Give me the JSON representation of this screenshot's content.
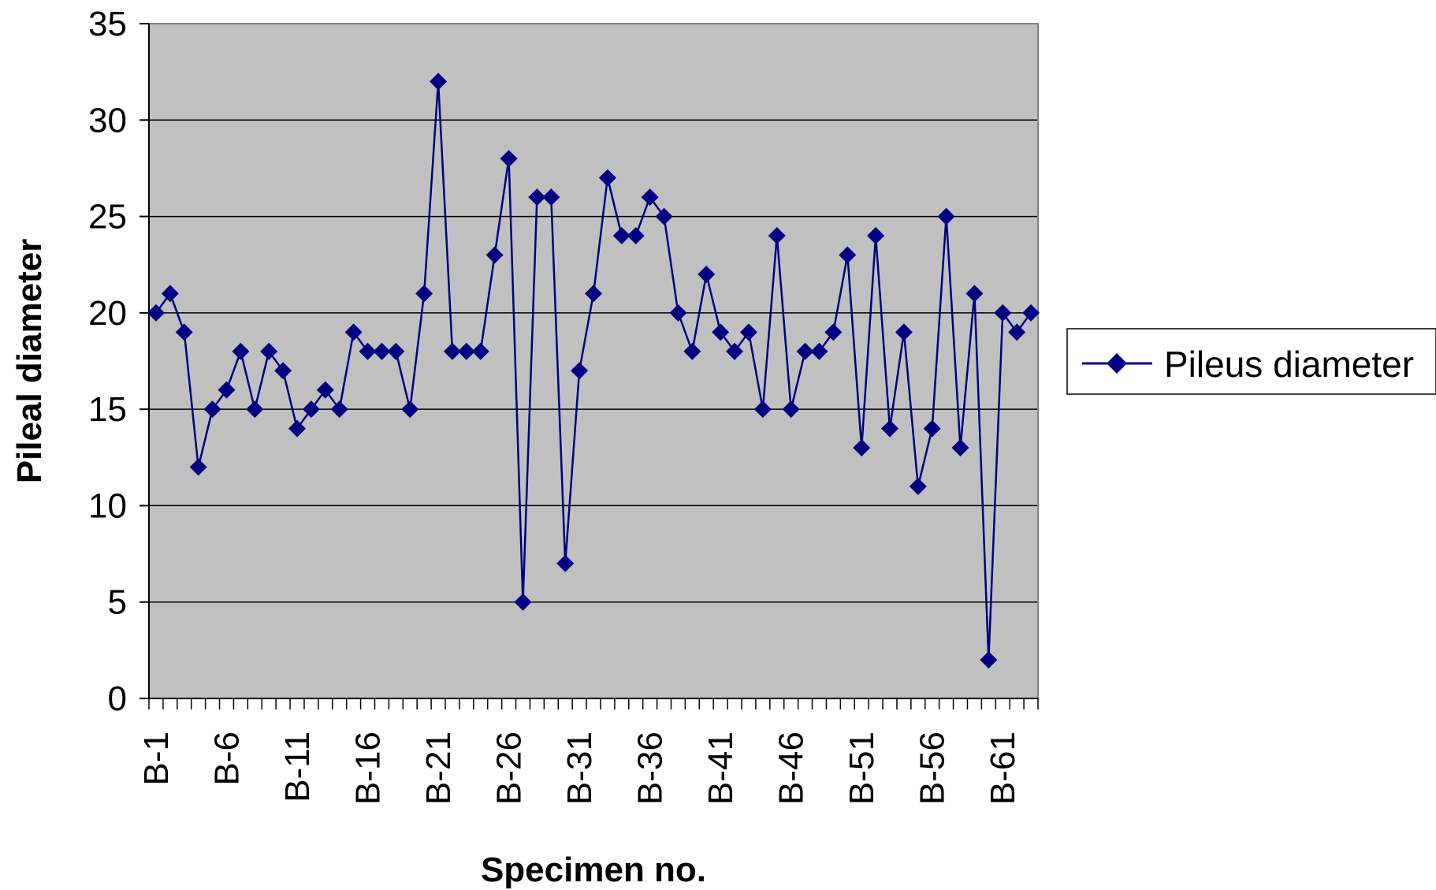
{
  "chart_data": {
    "type": "line",
    "xlabel": "Specimen no.",
    "ylabel": "Pileal diameter",
    "ylim": [
      0,
      35
    ],
    "yticks": [
      0,
      5,
      10,
      15,
      20,
      25,
      30,
      35
    ],
    "grid": true,
    "legend_position": "right",
    "plot_background": "#c0c0c0",
    "series_color": "#000080",
    "marker": "diamond",
    "categories": [
      "B-1",
      "B-2",
      "B-3",
      "B-4",
      "B-5",
      "B-6",
      "B-7",
      "B-8",
      "B-9",
      "B-10",
      "B-11",
      "B-12",
      "B-13",
      "B-14",
      "B-15",
      "B-16",
      "B-17",
      "B-18",
      "B-19",
      "B-20",
      "B-21",
      "B-22",
      "B-23",
      "B-24",
      "B-25",
      "B-26",
      "B-27",
      "B-28",
      "B-29",
      "B-30",
      "B-31",
      "B-32",
      "B-33",
      "B-34",
      "B-35",
      "B-36",
      "B-37",
      "B-38",
      "B-39",
      "B-40",
      "B-41",
      "B-42",
      "B-43",
      "B-44",
      "B-45",
      "B-46",
      "B-47",
      "B-48",
      "B-49",
      "B-50",
      "B-51",
      "B-52",
      "B-53",
      "B-54",
      "B-55",
      "B-56",
      "B-57",
      "B-58",
      "B-59",
      "B-60",
      "B-61",
      "B-62",
      "B-63"
    ],
    "tick_labels": [
      "B-1",
      "B-6",
      "B-11",
      "B-16",
      "B-21",
      "B-26",
      "B-31",
      "B-36",
      "B-41",
      "B-46",
      "B-51",
      "B-56",
      "B-61"
    ],
    "series": [
      {
        "name": "Pileus diameter",
        "values": [
          20,
          21,
          19,
          12,
          15,
          16,
          18,
          15,
          18,
          17,
          14,
          15,
          16,
          15,
          19,
          18,
          18,
          18,
          15,
          21,
          32,
          18,
          18,
          18,
          23,
          28,
          5,
          26,
          26,
          7,
          17,
          21,
          27,
          24,
          24,
          26,
          25,
          20,
          18,
          22,
          19,
          18,
          19,
          15,
          24,
          15,
          18,
          18,
          19,
          23,
          13,
          24,
          14,
          19,
          11,
          14,
          25,
          13,
          21,
          2,
          20,
          19,
          20
        ]
      }
    ]
  }
}
